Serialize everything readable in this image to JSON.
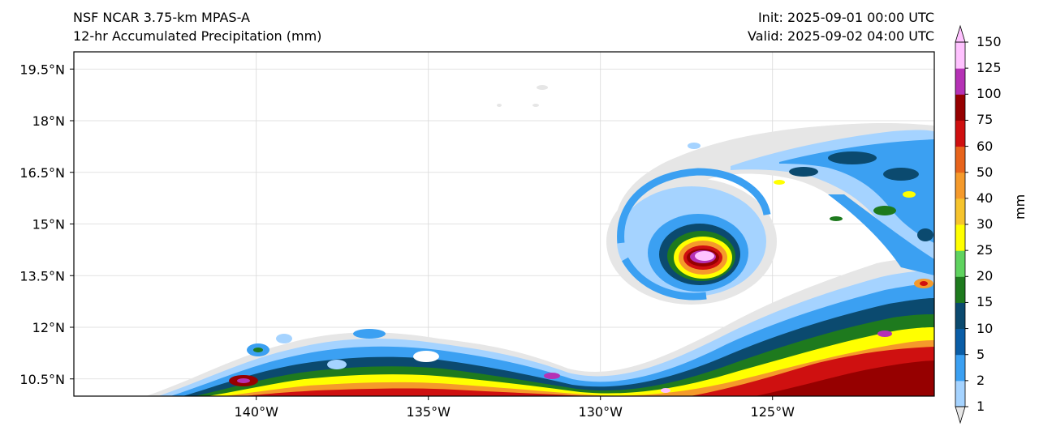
{
  "titles": {
    "model": "NSF NCAR 3.75-km MPAS-A",
    "field": "12-hr Accumulated Precipitation (mm)",
    "init": "Init: 2025-09-01 00:00 UTC",
    "valid": "Valid: 2025-09-02 04:00 UTC"
  },
  "lat_ticks": [
    {
      "label": "19.5°N",
      "value": 19.5
    },
    {
      "label": "18°N",
      "value": 18
    },
    {
      "label": "16.5°N",
      "value": 16.5
    },
    {
      "label": "15°N",
      "value": 15
    },
    {
      "label": "13.5°N",
      "value": 13.5
    },
    {
      "label": "12°N",
      "value": 12
    },
    {
      "label": "10.5°N",
      "value": 10.5
    }
  ],
  "lon_ticks": [
    {
      "label": "140°W",
      "value": -140
    },
    {
      "label": "135°W",
      "value": -135
    },
    {
      "label": "130°W",
      "value": -130
    },
    {
      "label": "125°W",
      "value": -125
    }
  ],
  "extent": {
    "lon_min": -145.3,
    "lon_max": -120.3,
    "lat_min": 10.0,
    "lat_max": 20.0
  },
  "colorbar": {
    "unit": "mm",
    "levels": [
      "1",
      "2",
      "5",
      "10",
      "15",
      "20",
      "25",
      "30",
      "40",
      "50",
      "60",
      "75",
      "100",
      "125",
      "150"
    ],
    "colors": [
      "#e6e6e6",
      "#a5d3ff",
      "#3ba0f2",
      "#0a5da6",
      "#0b4a6f",
      "#1e7a1e",
      "#5fd35f",
      "#ffff00",
      "#f6c42d",
      "#f59a2b",
      "#e8641c",
      "#cf1010",
      "#960000",
      "#b532b5",
      "#ffc2ff"
    ]
  },
  "colors": {
    "axis": "#000000",
    "grid": "#d9d9d9"
  }
}
